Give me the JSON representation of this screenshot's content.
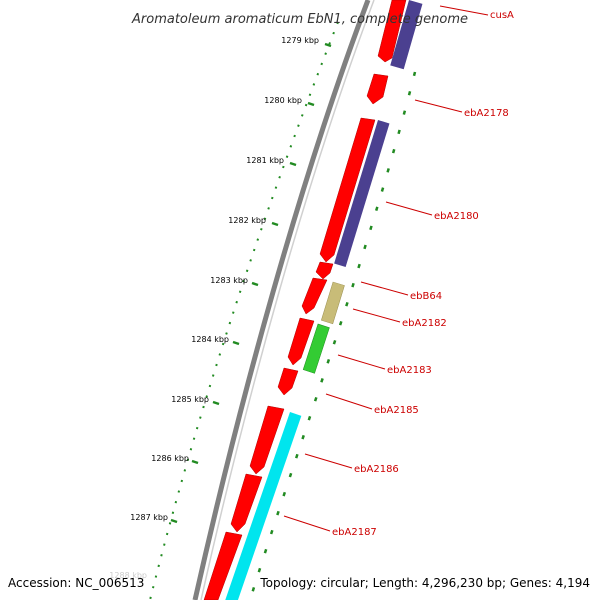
{
  "title": "Aromatoleum aromaticum EbN1, complete genome",
  "footer": {
    "accession": "Accession: NC_006513",
    "topology": "Topology: circular; Length: 4,296,230 bp; Genes: 4,194"
  },
  "colors": {
    "backbone": "#808080",
    "forward_cds": "#ff0000",
    "reverse_a": "#4b4090",
    "reverse_b": "#c8bc78",
    "reverse_c": "#33cc33",
    "reverse_d": "#00e5ee",
    "tick": "#228b22",
    "label": "#cc0000"
  },
  "kbp_labels": [
    "1279 kbp",
    "1280 kbp",
    "1281 kbp",
    "1282 kbp",
    "1283 kbp",
    "1284 kbp",
    "1285 kbp",
    "1286 kbp",
    "1287 kbp"
  ],
  "faint_label": "1288 kbp",
  "gene_labels": [
    "cusA",
    "ebA2178",
    "ebA2180",
    "ebB64",
    "ebA2182",
    "ebA2183",
    "ebA2185",
    "ebA2186",
    "ebA2187"
  ]
}
